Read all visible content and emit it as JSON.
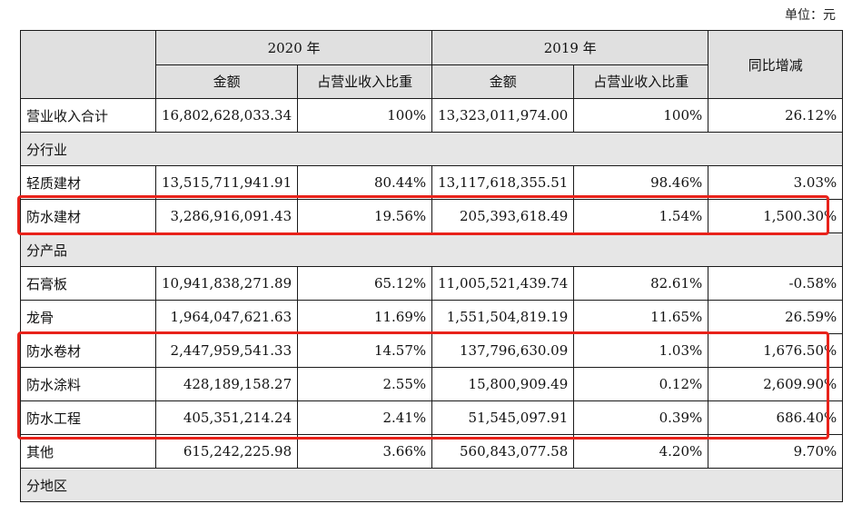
{
  "unit_label": "单位：元",
  "header": {
    "year_2020": "2020 年",
    "year_2019": "2019 年",
    "yoy": "同比增减",
    "amount": "金额",
    "ratio": "占营业收入比重"
  },
  "total_row": {
    "label": "营业收入合计",
    "amt_2020": "16,802,628,033.34",
    "pct_2020": "100%",
    "amt_2019": "13,323,011,974.00",
    "pct_2019": "100%",
    "yoy": "26.12%"
  },
  "sections": {
    "industry": "分行业",
    "product": "分产品",
    "region": "分地区"
  },
  "industry_rows": [
    {
      "label": "轻质建材",
      "amt_2020": "13,515,711,941.91",
      "pct_2020": "80.44%",
      "amt_2019": "13,117,618,355.51",
      "pct_2019": "98.46%",
      "yoy": "3.03%"
    },
    {
      "label": "防水建材",
      "amt_2020": "3,286,916,091.43",
      "pct_2020": "19.56%",
      "amt_2019": "205,393,618.49",
      "pct_2019": "1.54%",
      "yoy": "1,500.30%"
    }
  ],
  "product_rows": [
    {
      "label": "石膏板",
      "amt_2020": "10,941,838,271.89",
      "pct_2020": "65.12%",
      "amt_2019": "11,005,521,439.74",
      "pct_2019": "82.61%",
      "yoy": "-0.58%"
    },
    {
      "label": "龙骨",
      "amt_2020": "1,964,047,621.63",
      "pct_2020": "11.69%",
      "amt_2019": "1,551,504,819.19",
      "pct_2019": "11.65%",
      "yoy": "26.59%"
    },
    {
      "label": "防水卷材",
      "amt_2020": "2,447,959,541.33",
      "pct_2020": "14.57%",
      "amt_2019": "137,796,630.09",
      "pct_2019": "1.03%",
      "yoy": "1,676.50%"
    },
    {
      "label": "防水涂料",
      "amt_2020": "428,189,158.27",
      "pct_2020": "2.55%",
      "amt_2019": "15,800,909.49",
      "pct_2019": "0.12%",
      "yoy": "2,609.90%"
    },
    {
      "label": "防水工程",
      "amt_2020": "405,351,214.24",
      "pct_2020": "2.41%",
      "amt_2019": "51,545,097.91",
      "pct_2019": "0.39%",
      "yoy": "686.40%"
    },
    {
      "label": "其他",
      "amt_2020": "615,242,225.98",
      "pct_2020": "3.66%",
      "amt_2019": "560,843,077.58",
      "pct_2019": "4.20%",
      "yoy": "9.70%"
    }
  ],
  "highlight_color": "#e8221a"
}
